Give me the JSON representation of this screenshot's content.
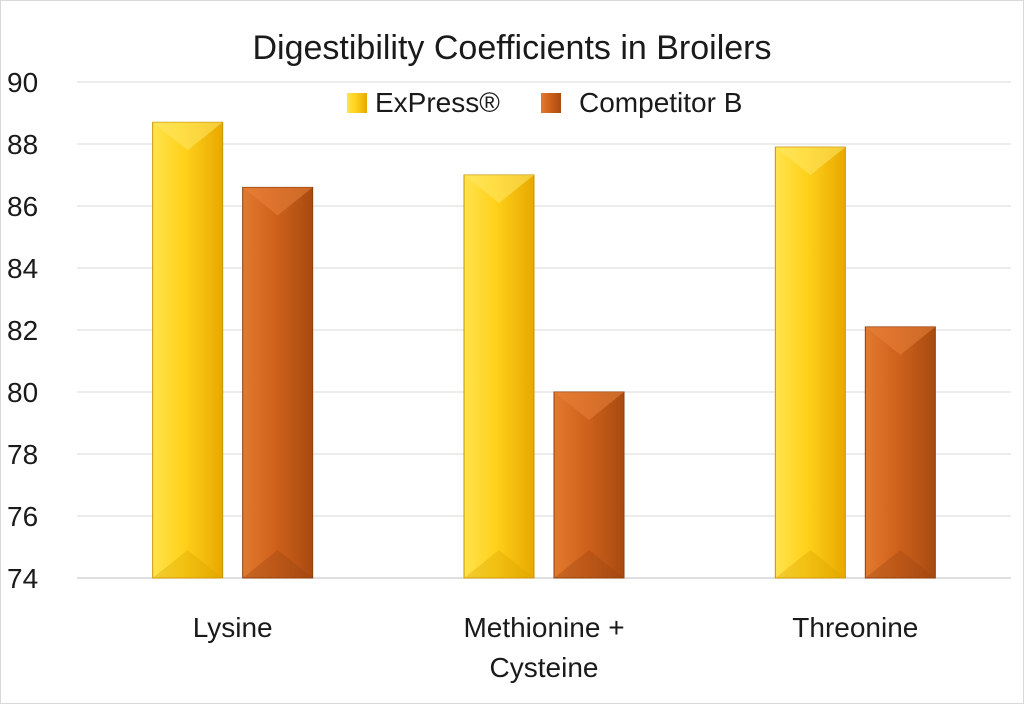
{
  "chart_data": {
    "type": "bar",
    "title": "Digestibility Coefficients in Broilers",
    "xlabel": "",
    "ylabel": "",
    "categories": [
      [
        "Lysine"
      ],
      [
        "Methionine +",
        "Cysteine"
      ],
      [
        "Threonine"
      ]
    ],
    "series": [
      {
        "name": "ExPress®",
        "values": [
          88.7,
          87.0,
          87.9
        ],
        "color": "#FFC000"
      },
      {
        "name": "Competitor B",
        "values": [
          86.6,
          80.0,
          82.1
        ],
        "color": "#D0621C"
      }
    ],
    "ylim": [
      74,
      90
    ],
    "yticks": [
      74,
      76,
      78,
      80,
      82,
      84,
      86,
      88,
      90
    ],
    "grid": true,
    "legend_position": "top"
  }
}
